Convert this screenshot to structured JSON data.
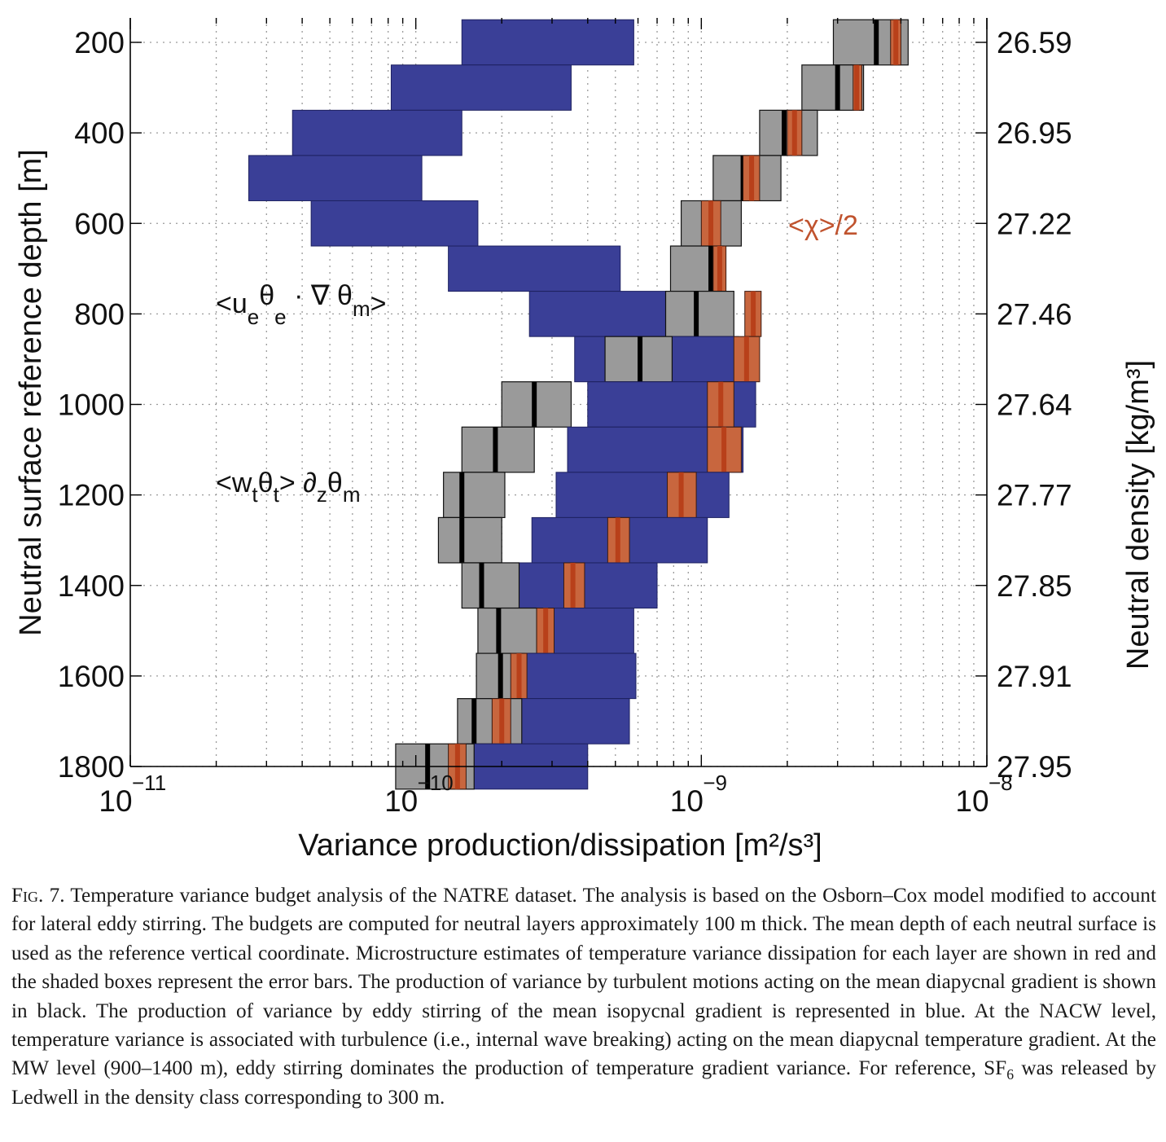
{
  "chart_data": {
    "type": "bar",
    "xscale": "log",
    "xlim": [
      1e-11,
      1e-08
    ],
    "ylim": [
      1800,
      200
    ],
    "xlabel": "Variance production/dissipation [m²/s³]",
    "ylabel": "Neutral surface reference depth [m]",
    "y2label": "Neutral density [kg/m³]",
    "xticks": [
      {
        "base": "10",
        "exp": "−11",
        "value": 1e-11
      },
      {
        "base": "10",
        "exp": "−10",
        "value": 1e-10
      },
      {
        "base": "10",
        "exp": "−9",
        "value": 1e-09
      },
      {
        "base": "10",
        "exp": "−8",
        "value": 1e-08
      }
    ],
    "yticks": [
      "200",
      "400",
      "600",
      "800",
      "1000",
      "1200",
      "1400",
      "1600",
      "1800"
    ],
    "y2ticks": [
      "26.59",
      "26.95",
      "27.22",
      "27.46",
      "27.64",
      "27.77",
      "27.85",
      "27.91",
      "27.95"
    ],
    "grid": true,
    "colors": {
      "eddy": "#3a3f97",
      "turb_box": "#9a9a9a",
      "turb_line": "#000000",
      "chi_box": "#c8663e",
      "chi_line": "#b8401a",
      "grid": "#9a9a9a"
    },
    "annotations": {
      "eddy": {
        "base": "<u",
        "s1": "e",
        "m1": "θ",
        "s2": "e",
        "m2": " · ∇ θ",
        "s3": "m",
        "end": ">"
      },
      "turb": {
        "base": "<w",
        "s1": "t",
        "m1": "θ",
        "s2": "t",
        "m2": "> ∂",
        "s3": "z",
        "m3": "θ",
        "s4": "m"
      },
      "chi": "<χ>/2"
    },
    "layers": [
      {
        "depth_top": 150,
        "depth_bot": 250,
        "eddy": [
          1.45e-10,
          5.8e-10
        ],
        "turb_range": [
          2.9e-09,
          5.3e-09
        ],
        "turb": 4.1e-09,
        "chi_range": [
          4.6e-09,
          5e-09
        ],
        "chi": 4.8e-09
      },
      {
        "depth_top": 250,
        "depth_bot": 350,
        "eddy": [
          8.2e-11,
          3.5e-10
        ],
        "turb_range": [
          2.25e-09,
          3.7e-09
        ],
        "turb": 3e-09,
        "chi_range": [
          3.4e-09,
          3.65e-09
        ],
        "chi": 3.5e-09
      },
      {
        "depth_top": 350,
        "depth_bot": 450,
        "eddy": [
          3.7e-11,
          1.45e-10
        ],
        "turb_range": [
          1.6e-09,
          2.55e-09
        ],
        "turb": 1.95e-09,
        "chi_range": [
          2e-09,
          2.25e-09
        ],
        "chi": 2.12e-09
      },
      {
        "depth_top": 450,
        "depth_bot": 550,
        "eddy": [
          2.6e-11,
          1.05e-10
        ],
        "turb_range": [
          1.1e-09,
          1.9e-09
        ],
        "turb": 1.4e-09,
        "chi_range": [
          1.4e-09,
          1.6e-09
        ],
        "chi": 1.5e-09
      },
      {
        "depth_top": 550,
        "depth_bot": 650,
        "eddy": [
          4.3e-11,
          1.65e-10
        ],
        "turb_range": [
          8.5e-10,
          1.38e-09
        ],
        "turb": 1.1e-09,
        "chi_range": [
          1e-09,
          1.17e-09
        ],
        "chi": 1.08e-09
      },
      {
        "depth_top": 650,
        "depth_bot": 750,
        "eddy": [
          1.3e-10,
          5.2e-10
        ],
        "turb_range": [
          7.8e-10,
          1.2e-09
        ],
        "turb": 1.08e-09,
        "chi_range": [
          1.1e-09,
          1.22e-09
        ],
        "chi": 1.16e-09
      },
      {
        "depth_top": 750,
        "depth_bot": 850,
        "eddy": [
          2.5e-10,
          7.8e-10
        ],
        "turb_range": [
          7.5e-10,
          1.3e-09
        ],
        "turb": 9.6e-10,
        "chi_range": [
          1.42e-09,
          1.62e-09
        ],
        "chi": 1.52e-09
      },
      {
        "depth_top": 850,
        "depth_bot": 950,
        "eddy": [
          3.6e-10,
          1.35e-09
        ],
        "turb_range": [
          4.6e-10,
          7.9e-10
        ],
        "turb": 6.1e-10,
        "chi_range": [
          1.3e-09,
          1.6e-09
        ],
        "chi": 1.44e-09
      },
      {
        "depth_top": 950,
        "depth_bot": 1050,
        "eddy": [
          4e-10,
          1.55e-09
        ],
        "turb_range": [
          2e-10,
          3.5e-10
        ],
        "turb": 2.6e-10,
        "chi_range": [
          1.05e-09,
          1.3e-09
        ],
        "chi": 1.17e-09
      },
      {
        "depth_top": 1050,
        "depth_bot": 1150,
        "eddy": [
          3.4e-10,
          1.4e-09
        ],
        "turb_range": [
          1.45e-10,
          2.6e-10
        ],
        "turb": 1.9e-10,
        "chi_range": [
          1.05e-09,
          1.38e-09
        ],
        "chi": 1.2e-09
      },
      {
        "depth_top": 1150,
        "depth_bot": 1250,
        "eddy": [
          3.1e-10,
          1.25e-09
        ],
        "turb_range": [
          1.25e-10,
          2.05e-10
        ],
        "turb": 1.45e-10,
        "chi_range": [
          7.6e-10,
          9.6e-10
        ],
        "chi": 8.5e-10
      },
      {
        "depth_top": 1250,
        "depth_bot": 1350,
        "eddy": [
          2.55e-10,
          1.05e-09
        ],
        "turb_range": [
          1.2e-10,
          2e-10
        ],
        "turb": 1.45e-10,
        "chi_range": [
          4.7e-10,
          5.6e-10
        ],
        "chi": 5.1e-10
      },
      {
        "depth_top": 1350,
        "depth_bot": 1450,
        "eddy": [
          2e-10,
          7e-10
        ],
        "turb_range": [
          1.45e-10,
          2.3e-10
        ],
        "turb": 1.7e-10,
        "chi_range": [
          3.3e-10,
          3.9e-10
        ],
        "chi": 3.55e-10
      },
      {
        "depth_top": 1450,
        "depth_bot": 1550,
        "eddy": [
          2.6e-10,
          5.8e-10
        ],
        "turb_range": [
          1.65e-10,
          2.65e-10
        ],
        "turb": 1.95e-10,
        "chi_range": [
          2.65e-10,
          3.05e-10
        ],
        "chi": 2.85e-10
      },
      {
        "depth_top": 1550,
        "depth_bot": 1650,
        "eddy": [
          2.1e-10,
          5.9e-10
        ],
        "turb_range": [
          1.63e-10,
          2.4e-10
        ],
        "turb": 1.98e-10,
        "chi_range": [
          2.15e-10,
          2.45e-10
        ],
        "chi": 2.3e-10
      },
      {
        "depth_top": 1650,
        "depth_bot": 1750,
        "eddy": [
          1.6e-10,
          5.6e-10
        ],
        "turb_range": [
          1.4e-10,
          2.35e-10
        ],
        "turb": 1.6e-10,
        "chi_range": [
          1.85e-10,
          2.15e-10
        ],
        "chi": 2e-10
      },
      {
        "depth_top": 1750,
        "depth_bot": 1850,
        "eddy": [
          1.4e-10,
          4e-10
        ],
        "turb_range": [
          8.5e-11,
          1.6e-10
        ],
        "turb": 1.1e-10,
        "chi_range": [
          1.3e-10,
          1.5e-10
        ],
        "chi": 1.4e-10
      }
    ]
  },
  "caption": {
    "fig": "Fig. 7.",
    "text": " Temperature variance budget analysis of the NATRE dataset. The analysis is based on the Osborn–Cox model modified to account for lateral eddy stirring. The budgets are computed for neutral layers approximately 100 m thick. The mean depth of each neutral surface is used as the reference vertical coordinate. Microstructure estimates of temperature variance dissipation for each layer are shown in red and the shaded boxes represent the error bars. The production of variance by turbulent motions acting on the mean diapycnal gradient is shown in black. The production of variance by eddy stirring of the mean isopycnal gradient is represented in blue. At the NACW level, temperature variance is associated with turbulence (i.e., internal wave breaking) acting on the mean diapycnal temperature gradient. At the MW level (900–1400 m), eddy stirring dominates the production of temperature gradient variance. For reference, SF",
    "sub": "6",
    "tail": " was released by Ledwell in the density class corresponding to 300 m."
  }
}
